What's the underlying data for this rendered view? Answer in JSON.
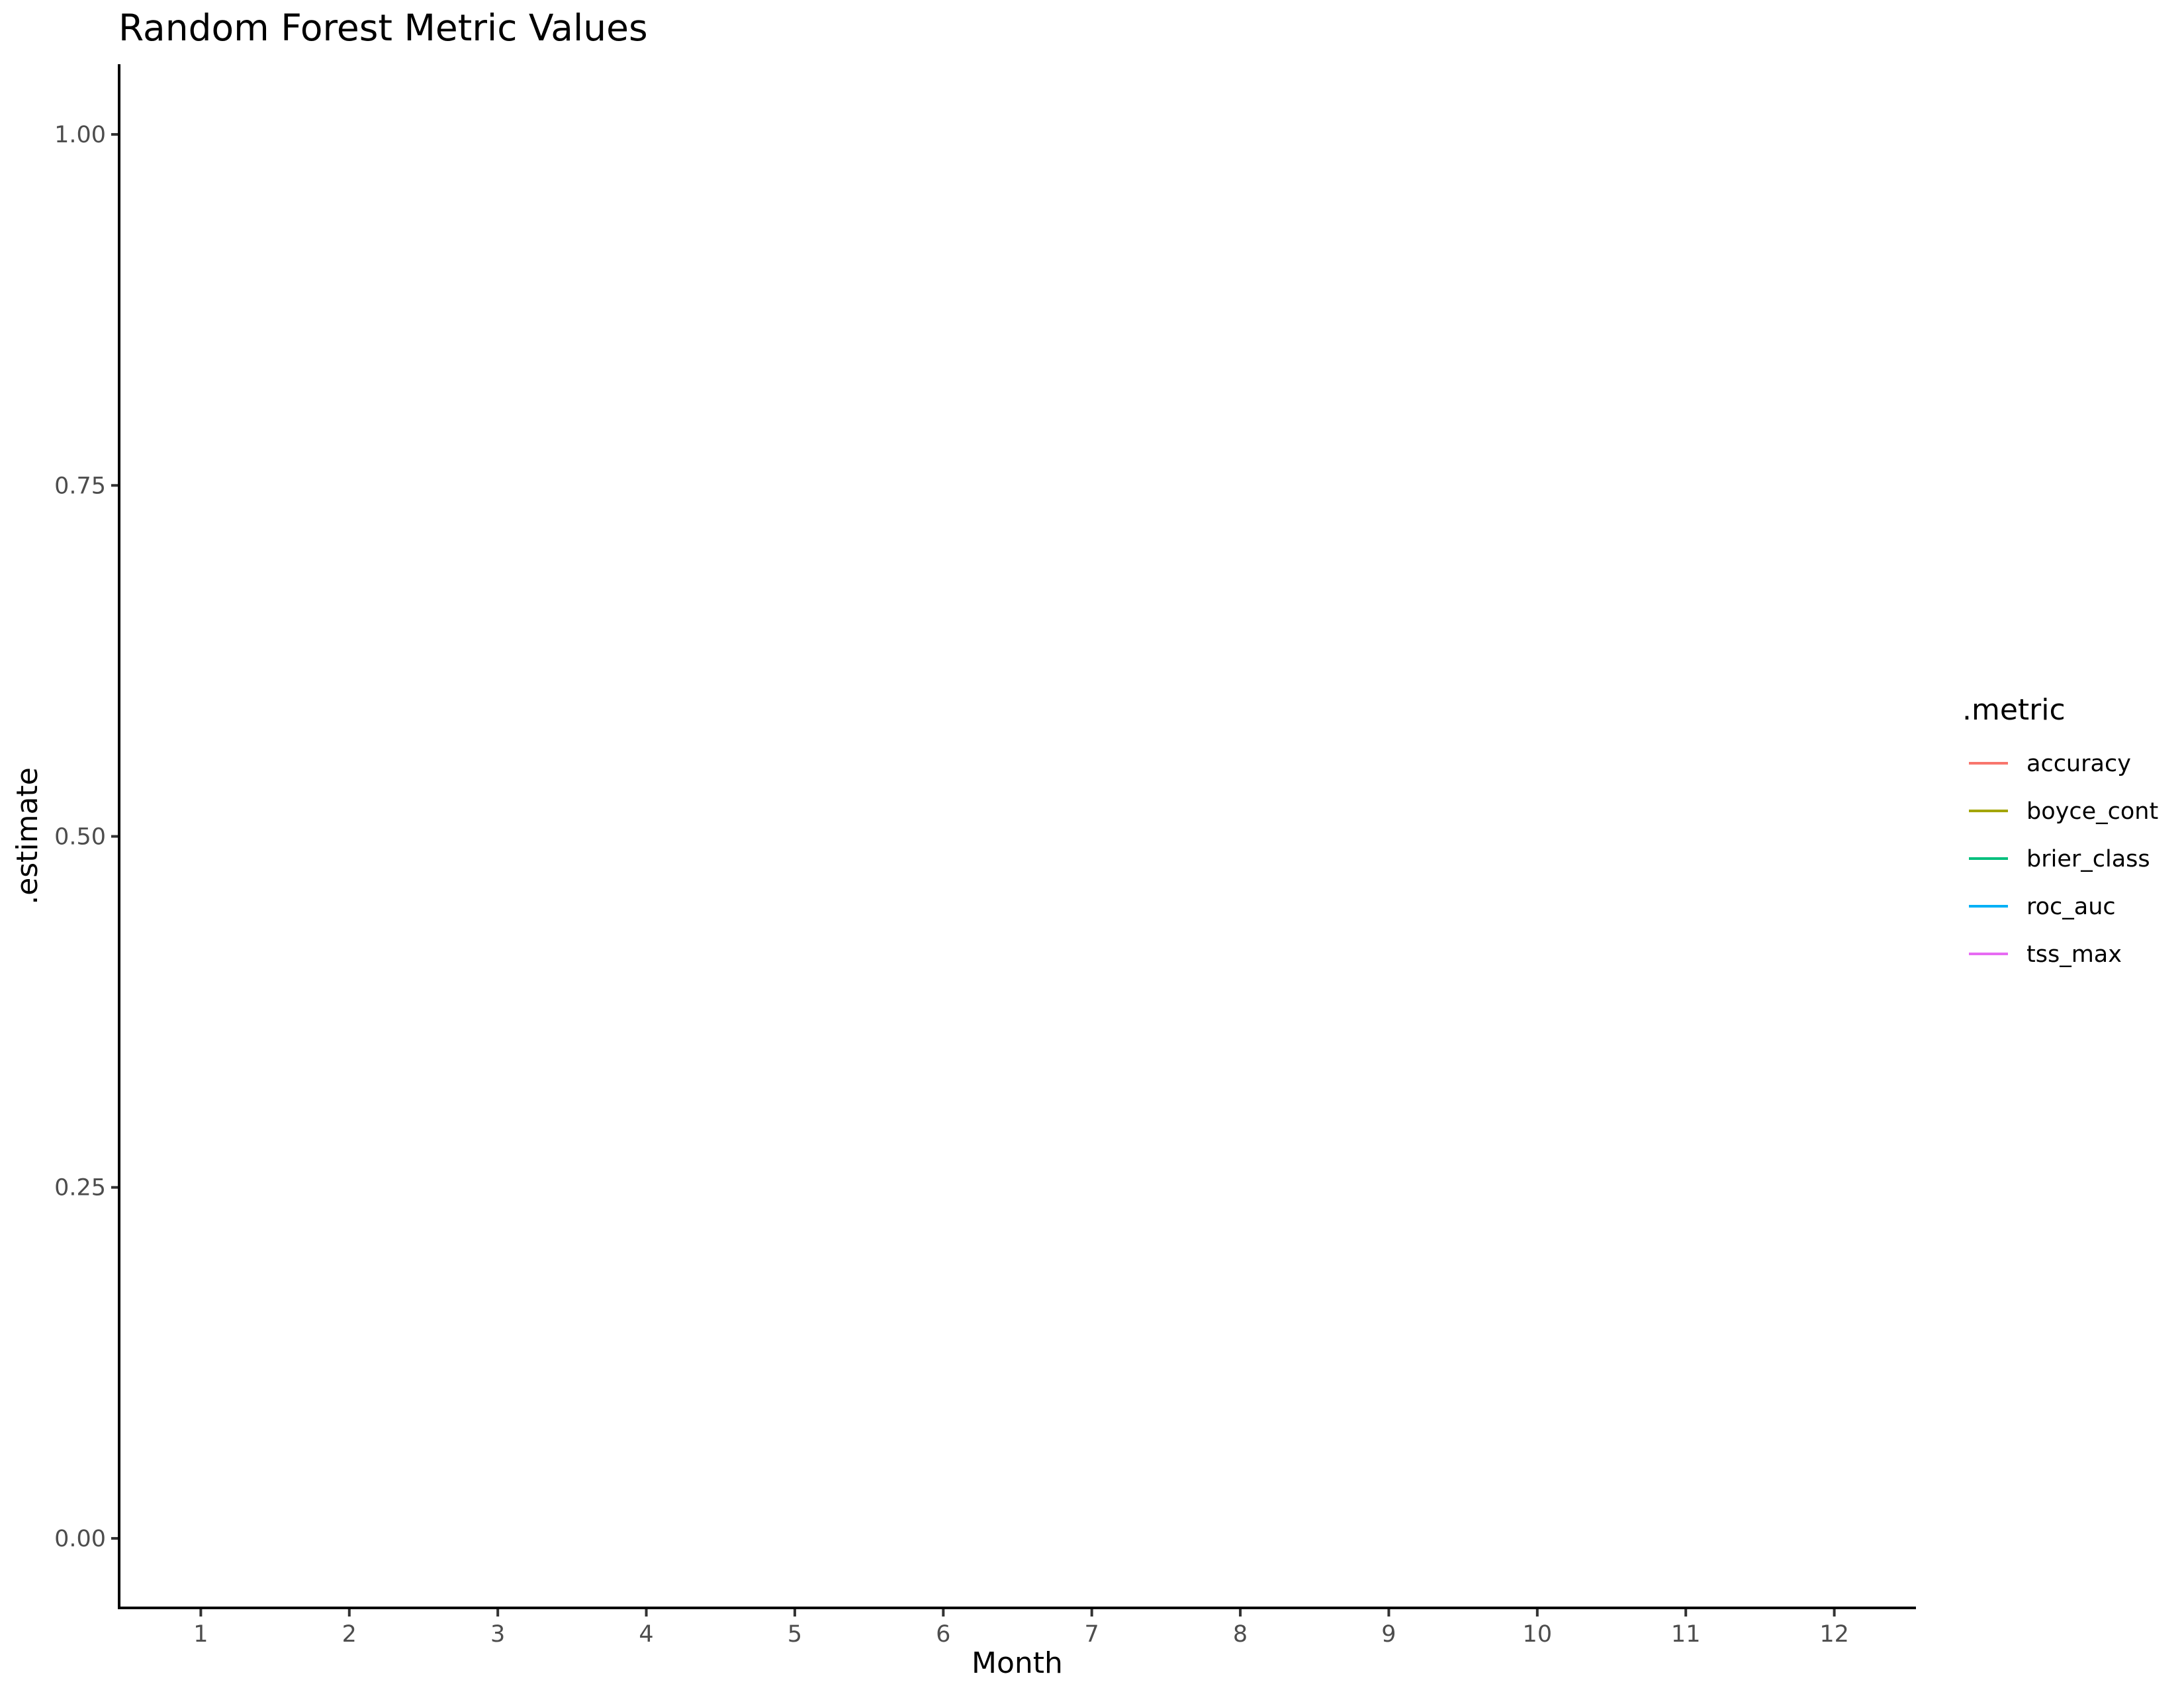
{
  "chart_data": {
    "type": "line",
    "title": "Random Forest Metric Values",
    "xlabel": "Month",
    "ylabel": ".estimate",
    "x_ticks": [
      "1",
      "2",
      "3",
      "4",
      "5",
      "6",
      "7",
      "8",
      "9",
      "10",
      "11",
      "12"
    ],
    "y_ticks": [
      "0.00",
      "0.25",
      "0.50",
      "0.75",
      "1.00"
    ],
    "y_tick_values": [
      0,
      0.25,
      0.5,
      0.75,
      1.0
    ],
    "xlim": [
      0.45,
      12.55
    ],
    "ylim": [
      -0.05,
      1.05
    ],
    "grid": false,
    "legend": {
      "title": ".metric",
      "placement": "right",
      "entries": [
        {
          "name": "accuracy",
          "color": "#F8766D"
        },
        {
          "name": "boyce_cont",
          "color": "#A3A500"
        },
        {
          "name": "brier_class",
          "color": "#00BF7D"
        },
        {
          "name": "roc_auc",
          "color": "#00B0F6"
        },
        {
          "name": "tss_max",
          "color": "#E76BF3"
        }
      ]
    },
    "series": [
      {
        "name": "accuracy",
        "values": []
      },
      {
        "name": "boyce_cont",
        "values": []
      },
      {
        "name": "brier_class",
        "values": []
      },
      {
        "name": "roc_auc",
        "values": []
      },
      {
        "name": "tss_max",
        "values": []
      }
    ]
  }
}
